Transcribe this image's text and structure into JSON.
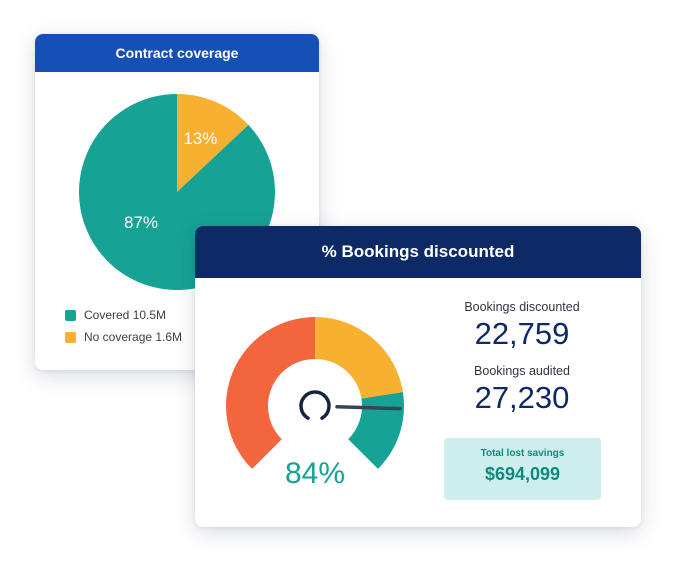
{
  "colors": {
    "teal": "#16a396",
    "yellow": "#f8b031",
    "orange": "#f2653d",
    "navy": "#0d2a66",
    "blue": "#1550b6"
  },
  "coverage_card": {
    "title": "Contract coverage",
    "legend": [
      {
        "label": "Covered 10.5M",
        "color": "#16a396"
      },
      {
        "label": "No coverage 1.6M",
        "color": "#f8b031"
      }
    ]
  },
  "bookings_card": {
    "title": "% Bookings discounted",
    "gauge_value_label": "84%",
    "stats": [
      {
        "label": "Bookings discounted",
        "value": "22,759"
      },
      {
        "label": "Bookings audited",
        "value": "27,230"
      }
    ],
    "savings": {
      "label": "Total lost savings",
      "value": "$694,099"
    }
  },
  "chart_data": [
    {
      "type": "pie",
      "title": "Contract coverage",
      "slices": [
        {
          "name": "Covered",
          "value": 87,
          "label": "87%",
          "color": "#16a396"
        },
        {
          "name": "No coverage",
          "value": 13,
          "label": "13%",
          "color": "#f8b031"
        }
      ]
    },
    {
      "type": "gauge",
      "title": "% Bookings discounted",
      "value": 84,
      "label": "84%",
      "bands": [
        {
          "from": 0,
          "to": 50,
          "color": "#f2653d"
        },
        {
          "from": 50,
          "to": 80,
          "color": "#f8b031"
        },
        {
          "from": 80,
          "to": 100,
          "color": "#16a396"
        }
      ]
    }
  ]
}
